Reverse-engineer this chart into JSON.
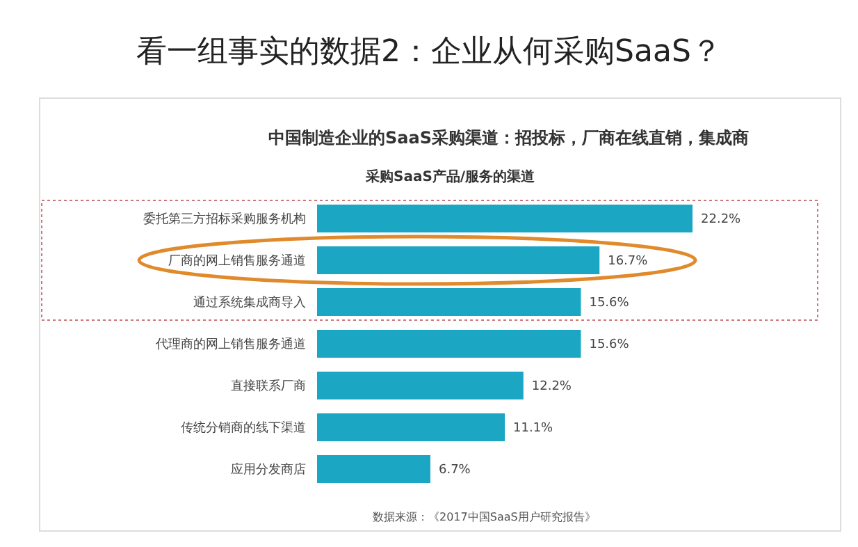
{
  "chart_data": {
    "type": "bar",
    "orientation": "horizontal",
    "title": "看一组事实的数据2：企业从何采购SaaS？",
    "subtitle": "中国制造企业的SaaS采购渠道：招投标，厂商在线直销，集成商",
    "annotations": [
      "采购SaaS产品/服务的渠道",
      "数据来源：《2017中国SaaS用户研究报告》"
    ],
    "categories": [
      "委托第三方招标采购服务机构",
      "厂商的网上销售服务通道",
      "通过系统集成商导入",
      "代理商的网上销售服务通道",
      "直接联系厂商",
      "传统分销商的线下渠道",
      "应用分发商店"
    ],
    "values": [
      22.2,
      16.7,
      15.6,
      15.6,
      12.2,
      11.1,
      6.7
    ],
    "value_labels": [
      "22.2%",
      "16.7%",
      "15.6%",
      "15.6%",
      "12.2%",
      "11.1%",
      "6.7%"
    ],
    "color": "#1ba6c4",
    "grid": false,
    "legend": false
  }
}
